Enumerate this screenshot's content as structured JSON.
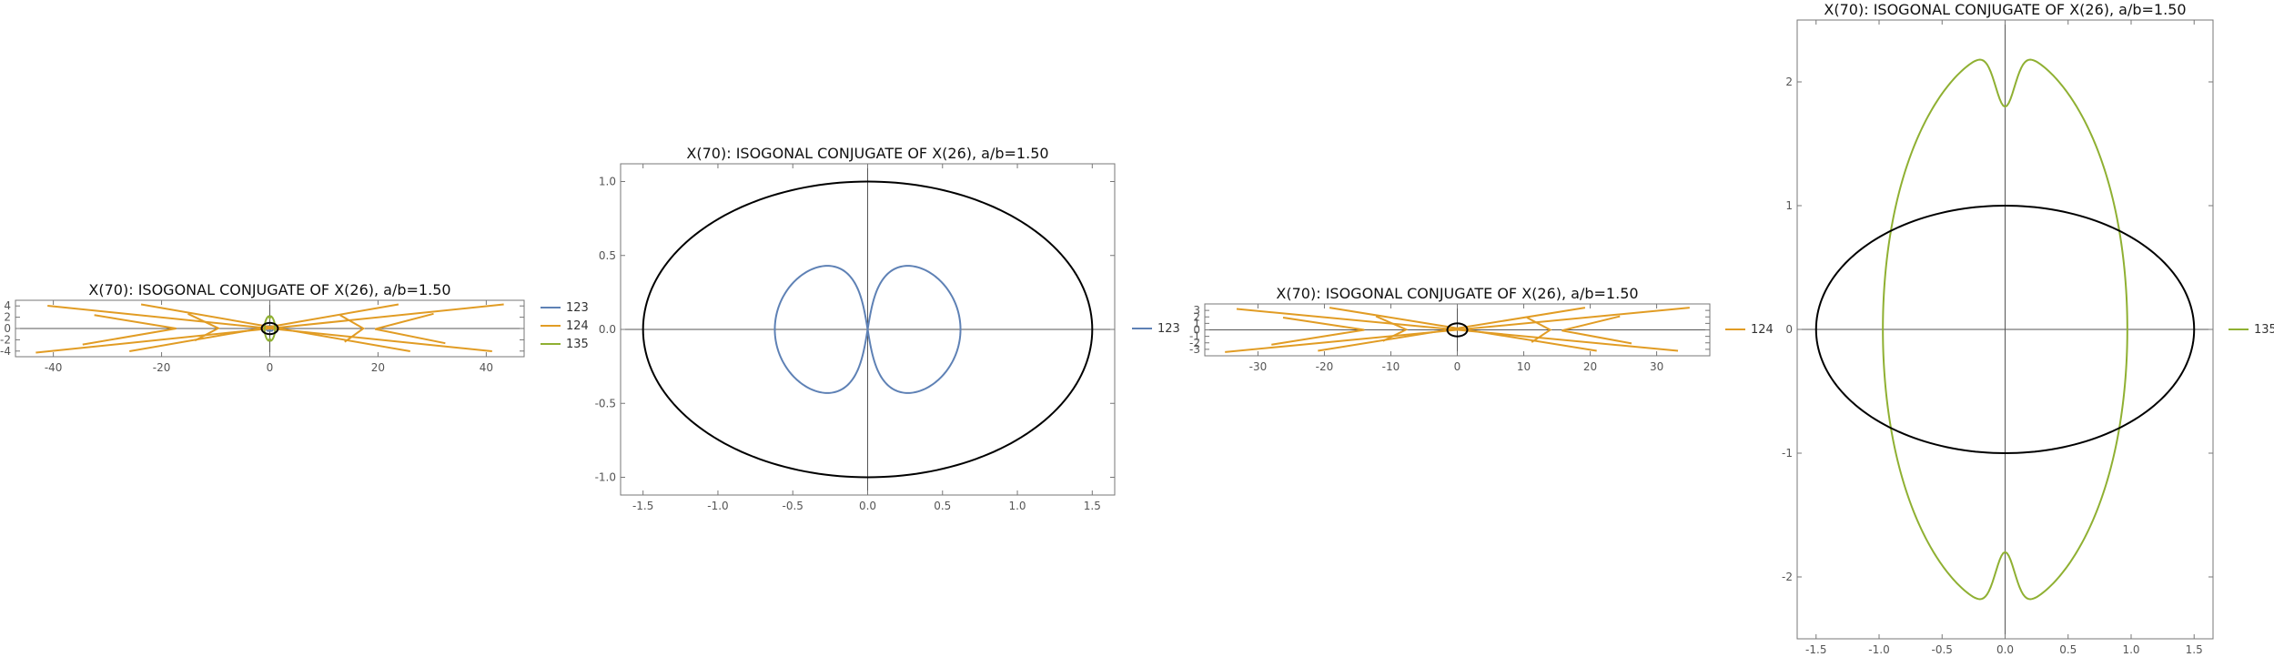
{
  "colors": {
    "series_123": "#5e81b5",
    "series_124": "#e19c24",
    "series_135": "#8fb032",
    "ellipse": "#000000",
    "axis": "#555555",
    "frame": "#777777"
  },
  "chart_data": [
    {
      "type": "line",
      "title": "X(70): ISOGONAL CONJUGATE OF X(26), a/b=1.50",
      "xlim": [
        -47,
        47
      ],
      "ylim": [
        -5,
        5
      ],
      "xticks": [
        "-40",
        "-20",
        "0",
        "20",
        "40"
      ],
      "xtick_values": [
        -40,
        -20,
        0,
        20,
        40
      ],
      "yticks": [
        "-4",
        "-2",
        "0",
        "2",
        "4"
      ],
      "ytick_values": [
        -4,
        -2,
        0,
        2,
        4
      ],
      "legend_position": "right",
      "legend": [
        "123",
        "124",
        "135"
      ],
      "grid": false,
      "ellipse": {
        "a": 1.5,
        "b": 1.0
      },
      "series": [
        {
          "name": "123",
          "color_key": "series_123",
          "shape": "fish-loops"
        },
        {
          "name": "124",
          "color_key": "series_124",
          "shape": "wide-x"
        },
        {
          "name": "135",
          "color_key": "series_135",
          "shape": "peanut"
        }
      ]
    },
    {
      "type": "line",
      "title": "X(70): ISOGONAL CONJUGATE OF X(26), a/b=1.50",
      "xlim": [
        -1.65,
        1.65
      ],
      "ylim": [
        -1.12,
        1.12
      ],
      "xticks": [
        "-1.5",
        "-1.0",
        "-0.5",
        "0.0",
        "0.5",
        "1.0",
        "1.5"
      ],
      "xtick_values": [
        -1.5,
        -1.0,
        -0.5,
        0.0,
        0.5,
        1.0,
        1.5
      ],
      "yticks": [
        "-1.0",
        "-0.5",
        "0.0",
        "0.5",
        "1.0"
      ],
      "ytick_values": [
        -1.0,
        -0.5,
        0.0,
        0.5,
        1.0
      ],
      "legend_position": "right",
      "legend": [
        "123"
      ],
      "grid": false,
      "ellipse": {
        "a": 1.5,
        "b": 1.0
      },
      "series": [
        {
          "name": "123",
          "color_key": "series_123",
          "shape": "fish-loops"
        }
      ]
    },
    {
      "type": "line",
      "title": "X(70): ISOGONAL CONJUGATE OF X(26), a/b=1.50",
      "xlim": [
        -38,
        38
      ],
      "ylim": [
        -4,
        4
      ],
      "xticks": [
        "-30",
        "-20",
        "-10",
        "0",
        "10",
        "20",
        "30"
      ],
      "xtick_values": [
        -30,
        -20,
        -10,
        0,
        10,
        20,
        30
      ],
      "yticks": [
        "-3",
        "-2",
        "-1",
        "0",
        "1",
        "2",
        "3"
      ],
      "ytick_values": [
        -3,
        -2,
        -1,
        0,
        1,
        2,
        3
      ],
      "legend_position": "right",
      "legend": [
        "124"
      ],
      "grid": false,
      "ellipse": {
        "a": 1.5,
        "b": 1.0
      },
      "series": [
        {
          "name": "124",
          "color_key": "series_124",
          "shape": "wide-x"
        }
      ]
    },
    {
      "type": "line",
      "title": "X(70): ISOGONAL CONJUGATE OF X(26), a/b=1.50",
      "xlim": [
        -1.65,
        1.65
      ],
      "ylim": [
        -2.5,
        2.5
      ],
      "xticks": [
        "-1.5",
        "-1.0",
        "-0.5",
        "0.0",
        "0.5",
        "1.0",
        "1.5"
      ],
      "xtick_values": [
        -1.5,
        -1.0,
        -0.5,
        0.0,
        0.5,
        1.0,
        1.5
      ],
      "yticks": [
        "-2",
        "-1",
        "0",
        "1",
        "2"
      ],
      "ytick_values": [
        -2,
        -1,
        0,
        1,
        2
      ],
      "legend_position": "right",
      "legend": [
        "135"
      ],
      "grid": false,
      "ellipse": {
        "a": 1.5,
        "b": 1.0
      },
      "series": [
        {
          "name": "135",
          "color_key": "series_135",
          "shape": "peanut"
        }
      ]
    }
  ]
}
